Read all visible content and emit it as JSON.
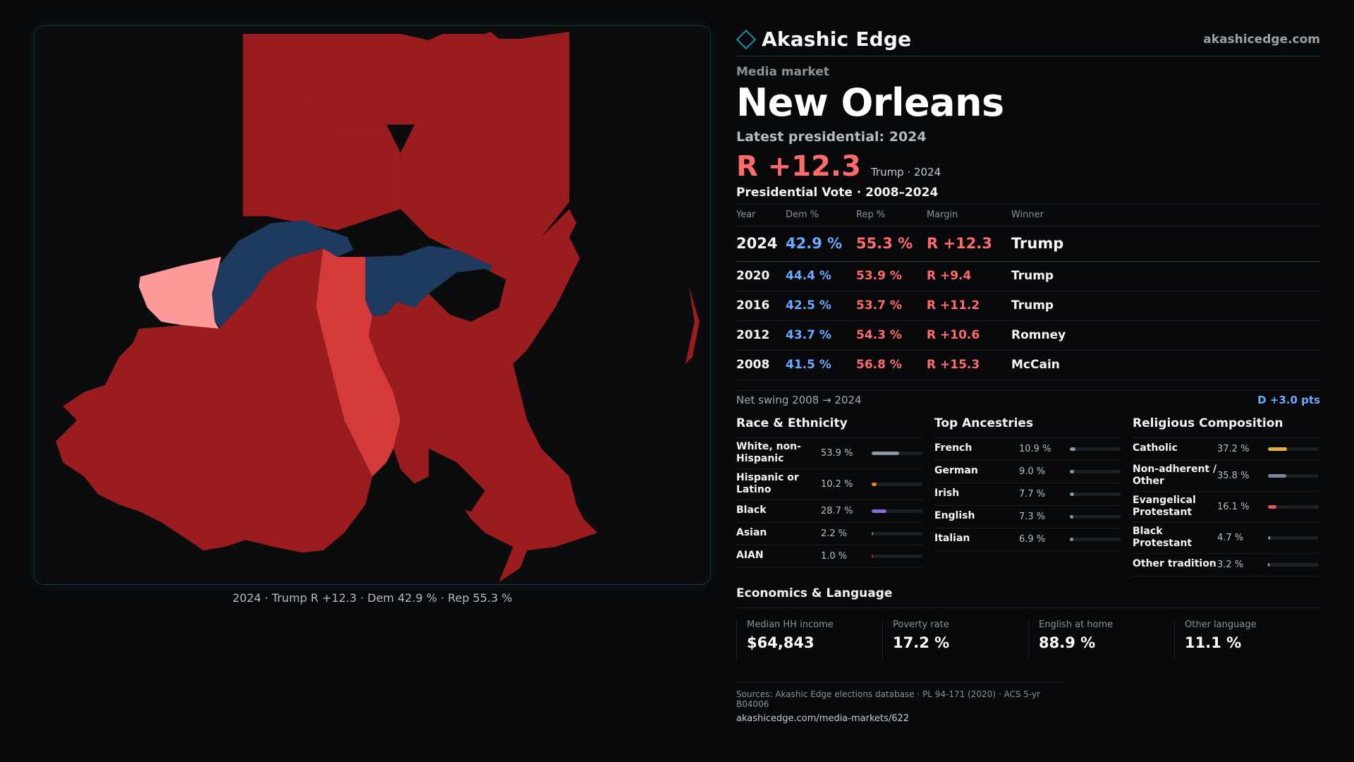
{
  "map": {
    "caption": "2024 · Trump R +12.3 · Dem 42.9 % · Rep 55.3 %",
    "colors": {
      "solid_rep": "#9b1c1f",
      "lean_rep": "#d53a3a",
      "tilt_rep": "#ff9a9a",
      "dem": "#1f3a5f",
      "water": "#0b0c0e"
    }
  },
  "brand": {
    "name": "Akashic Edge",
    "site": "akashicedge.com"
  },
  "market": {
    "kicker": "Media market",
    "name": "New Orleans",
    "latest_label": "Latest presidential: 2024",
    "margin": "R +12.3",
    "margin_sub": "Trump · 2024"
  },
  "votes": {
    "title": "Presidential Vote · 2008–2024",
    "headers": [
      "Year",
      "Dem %",
      "Rep %",
      "Margin",
      "Winner"
    ],
    "rows": [
      {
        "year": "2024",
        "dem": "42.9 %",
        "rep": "55.3 %",
        "margin": "R +12.3",
        "winner": "Trump"
      },
      {
        "year": "2020",
        "dem": "44.4 %",
        "rep": "53.9 %",
        "margin": "R +9.4",
        "winner": "Trump"
      },
      {
        "year": "2016",
        "dem": "42.5 %",
        "rep": "53.7 %",
        "margin": "R +11.2",
        "winner": "Trump"
      },
      {
        "year": "2012",
        "dem": "43.7 %",
        "rep": "54.3 %",
        "margin": "R +10.6",
        "winner": "Romney"
      },
      {
        "year": "2008",
        "dem": "41.5 %",
        "rep": "56.8 %",
        "margin": "R +15.3",
        "winner": "McCain"
      }
    ]
  },
  "swing": {
    "label": "Net swing 2008 → 2024",
    "value": "D +3.0 pts"
  },
  "race": {
    "title": "Race & Ethnicity",
    "items": [
      {
        "label": "White, non-Hispanic",
        "value": "53.9 %",
        "pct": 53.9,
        "color": "#8d96a6"
      },
      {
        "label": "Hispanic or Latino",
        "value": "10.2 %",
        "pct": 10.2,
        "color": "#e08a1e"
      },
      {
        "label": "Black",
        "value": "28.7 %",
        "pct": 28.7,
        "color": "#8a6bd8"
      },
      {
        "label": "Asian",
        "value": "2.2 %",
        "pct": 2.2,
        "color": "#2db39a"
      },
      {
        "label": "AIAN",
        "value": "1.0 %",
        "pct": 1.0,
        "color": "#c0392b"
      }
    ]
  },
  "ancestry": {
    "title": "Top Ancestries",
    "items": [
      {
        "label": "French",
        "value": "10.9 %",
        "pct": 10.9,
        "color": "#8d96a6"
      },
      {
        "label": "German",
        "value": "9.0 %",
        "pct": 9.0,
        "color": "#8d96a6"
      },
      {
        "label": "Irish",
        "value": "7.7 %",
        "pct": 7.7,
        "color": "#8d96a6"
      },
      {
        "label": "English",
        "value": "7.3 %",
        "pct": 7.3,
        "color": "#8d96a6"
      },
      {
        "label": "Italian",
        "value": "6.9 %",
        "pct": 6.9,
        "color": "#8d96a6"
      }
    ]
  },
  "religion": {
    "title": "Religious Composition",
    "items": [
      {
        "label": "Catholic",
        "value": "37.2 %",
        "pct": 37.2,
        "color": "#e3b341"
      },
      {
        "label": "Non-adherent / Other",
        "value": "35.8 %",
        "pct": 35.8,
        "color": "#7d8696"
      },
      {
        "label": "Evangelical Protestant",
        "value": "16.1 %",
        "pct": 16.1,
        "color": "#e05a5a"
      },
      {
        "label": "Black Protestant",
        "value": "4.7 %",
        "pct": 4.7,
        "color": "#7b8ecf"
      },
      {
        "label": "Other tradition",
        "value": "3.2 %",
        "pct": 3.2,
        "color": "#c9cdd3"
      }
    ]
  },
  "econ": {
    "title": "Economics & Language",
    "items": [
      {
        "label": "Median HH income",
        "value": "$64,843"
      },
      {
        "label": "Poverty rate",
        "value": "17.2 %"
      },
      {
        "label": "English at home",
        "value": "88.9 %"
      },
      {
        "label": "Other language",
        "value": "11.1 %"
      }
    ]
  },
  "sources": {
    "line": "Sources: Akashic Edge elections database · PL 94-171 (2020) · ACS 5-yr B04006",
    "url": "akashicedge.com/media-markets/622"
  }
}
